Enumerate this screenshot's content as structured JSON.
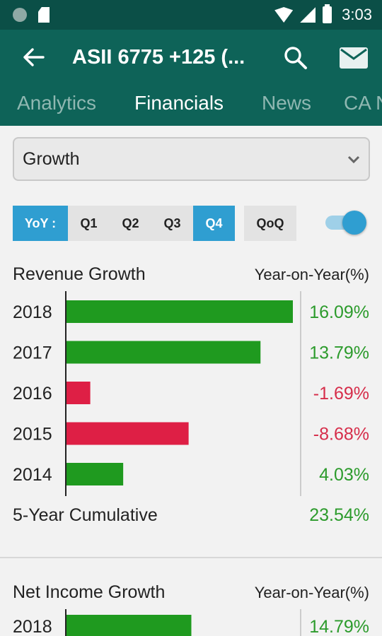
{
  "status_bar": {
    "time": "3:03"
  },
  "app_bar": {
    "title": "ASII  6775 +125 (..."
  },
  "tabs": [
    {
      "label": "Analytics",
      "active": false
    },
    {
      "label": "Financials",
      "active": true
    },
    {
      "label": "News",
      "active": false
    },
    {
      "label": "CA N",
      "active": false
    }
  ],
  "selector": {
    "value": "Growth"
  },
  "periods": {
    "yoy_label": "YoY :",
    "q1": "Q1",
    "q2": "Q2",
    "q3": "Q3",
    "q4": "Q4",
    "qoq": "QoQ",
    "selected": "Q4",
    "toggle_on": true
  },
  "revenue": {
    "title": "Revenue Growth",
    "subtitle": "Year-on-Year(%)",
    "cumulative_label": "5-Year Cumulative",
    "cumulative_value": "23.54%"
  },
  "net_income": {
    "title": "Net Income Growth",
    "subtitle": "Year-on-Year(%)"
  },
  "colors": {
    "positive": "#1f9a1f",
    "negative": "#de1f45",
    "positive_text": "#2c9b2c",
    "negative_text": "#d62d4a",
    "accent": "#2f9ed1",
    "header": "#0e6358"
  },
  "chart_data": [
    {
      "type": "bar",
      "orientation": "horizontal",
      "title": "Revenue Growth",
      "ylabel": "Year-on-Year(%)",
      "categories": [
        "2018",
        "2017",
        "2016",
        "2015",
        "2014"
      ],
      "values": [
        16.09,
        13.79,
        -1.69,
        -8.68,
        4.03
      ],
      "value_labels": [
        "16.09%",
        "13.79%",
        "-1.69%",
        "-8.68%",
        "4.03%"
      ]
    },
    {
      "type": "bar",
      "orientation": "horizontal",
      "title": "Net Income Growth",
      "ylabel": "Year-on-Year(%)",
      "categories": [
        "2018"
      ],
      "values": [
        14.79
      ],
      "value_labels": [
        "14.79%"
      ]
    }
  ]
}
